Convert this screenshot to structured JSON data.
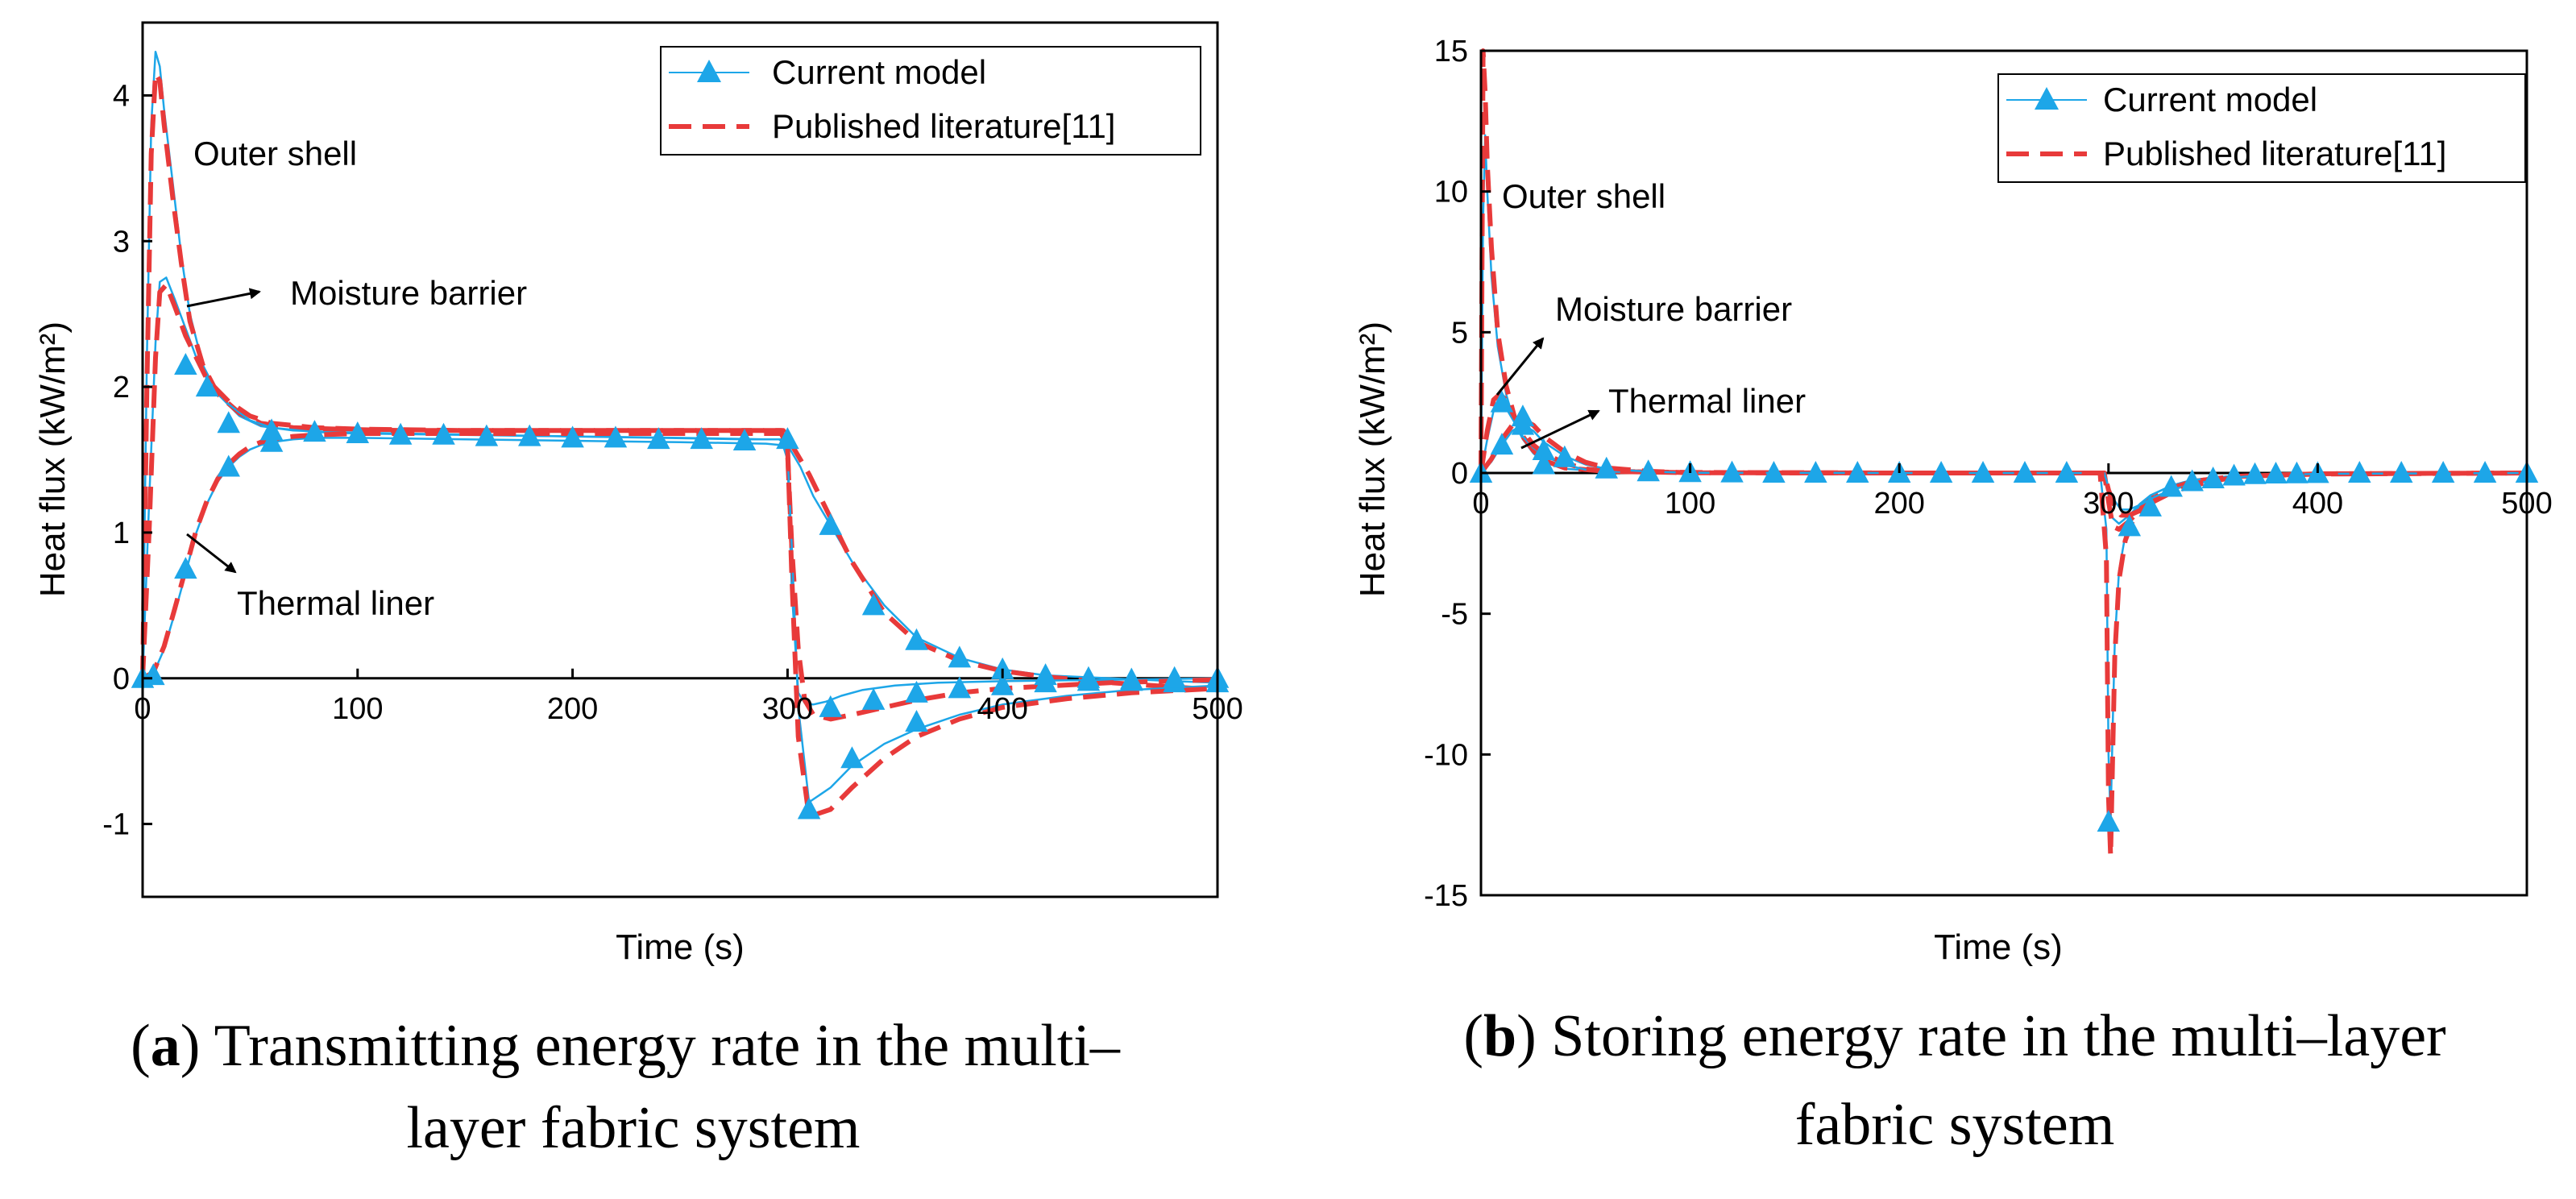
{
  "chart_data": [
    {
      "type": "line",
      "caption_letter": "a",
      "caption_line1": "Transmitting energy rate in the multi–",
      "caption_line2": "layer fabric system",
      "xlabel": "Time (s)",
      "ylabel": "Heat flux (kW/m²)",
      "xlim": [
        0,
        500
      ],
      "ylim": [
        -1.5,
        4.5
      ],
      "xticks": [
        0,
        100,
        200,
        300,
        400,
        500
      ],
      "yticks": [
        -1,
        0,
        1,
        2,
        3,
        4
      ],
      "legend": {
        "placement": "top-right",
        "entries": [
          "Current model",
          "Published literature[11]"
        ]
      },
      "series": [
        {
          "name": "Outer shell - Current model",
          "style": "model",
          "x": [
            0,
            2,
            4,
            6,
            8,
            10,
            14,
            18,
            22,
            28,
            35,
            45,
            55,
            70,
            90,
            120,
            160,
            200,
            240,
            280,
            296,
            300,
            306,
            312,
            320,
            330,
            345,
            360,
            380,
            400,
            420,
            450,
            480,
            500
          ],
          "y": [
            0,
            2.2,
            3.8,
            4.3,
            4.2,
            3.9,
            3.4,
            2.9,
            2.5,
            2.15,
            1.95,
            1.8,
            1.73,
            1.7,
            1.69,
            1.68,
            1.67,
            1.66,
            1.65,
            1.64,
            1.64,
            1.6,
            1.45,
            1.25,
            1.05,
            0.8,
            0.5,
            0.28,
            0.14,
            0.06,
            0.02,
            0.0,
            -0.02,
            -0.03
          ]
        },
        {
          "name": "Outer shell - Published literature",
          "style": "literature",
          "x": [
            0,
            2,
            4,
            6,
            8,
            10,
            14,
            18,
            22,
            28,
            35,
            45,
            55,
            70,
            90,
            120,
            160,
            200,
            240,
            280,
            298,
            302,
            310,
            320,
            330,
            345,
            360,
            380,
            400,
            420,
            450,
            480,
            500
          ],
          "y": [
            0,
            2.0,
            3.6,
            4.15,
            4.1,
            3.8,
            3.3,
            2.85,
            2.45,
            2.15,
            1.95,
            1.82,
            1.75,
            1.72,
            1.71,
            1.7,
            1.7,
            1.7,
            1.7,
            1.7,
            1.7,
            1.6,
            1.4,
            1.1,
            0.8,
            0.45,
            0.25,
            0.12,
            0.05,
            0.01,
            -0.03,
            -0.06,
            -0.08
          ]
        },
        {
          "name": "Moisture barrier - Current model",
          "style": "model",
          "x": [
            0,
            3,
            6,
            8,
            11,
            15,
            20,
            25,
            30,
            40,
            50,
            60,
            80,
            100,
            150,
            200,
            250,
            290,
            297,
            300,
            302,
            305,
            308,
            312,
            318,
            325,
            335,
            350,
            370,
            400,
            450,
            500
          ],
          "y": [
            0,
            1.2,
            2.3,
            2.72,
            2.75,
            2.6,
            2.4,
            2.2,
            2.05,
            1.88,
            1.77,
            1.72,
            1.69,
            1.68,
            1.67,
            1.66,
            1.65,
            1.64,
            1.64,
            1.5,
            0.6,
            -0.1,
            -0.17,
            -0.18,
            -0.16,
            -0.12,
            -0.08,
            -0.05,
            -0.03,
            -0.02,
            -0.01,
            0.0
          ]
        },
        {
          "name": "Moisture barrier - Published literature",
          "style": "literature",
          "x": [
            0,
            3,
            6,
            8,
            11,
            15,
            20,
            25,
            30,
            40,
            50,
            60,
            80,
            100,
            150,
            200,
            250,
            290,
            297,
            300,
            302,
            305,
            308,
            312,
            320,
            330,
            345,
            360,
            380,
            400,
            450,
            500
          ],
          "y": [
            0,
            1.0,
            2.2,
            2.65,
            2.7,
            2.55,
            2.35,
            2.2,
            2.05,
            1.9,
            1.8,
            1.75,
            1.72,
            1.71,
            1.7,
            1.7,
            1.7,
            1.7,
            1.7,
            1.55,
            0.9,
            0.2,
            -0.15,
            -0.25,
            -0.28,
            -0.25,
            -0.2,
            -0.15,
            -0.1,
            -0.07,
            -0.03,
            -0.01
          ]
        },
        {
          "name": "Thermal liner - Current model",
          "style": "model",
          "x": [
            0,
            5,
            10,
            15,
            20,
            25,
            30,
            35,
            40,
            45,
            50,
            55,
            60,
            70,
            80,
            100,
            150,
            200,
            250,
            290,
            297,
            300,
            302,
            305,
            310,
            320,
            330,
            345,
            360,
            380,
            400,
            430,
            460,
            500
          ],
          "y": [
            0,
            0.03,
            0.2,
            0.45,
            0.72,
            1.0,
            1.2,
            1.35,
            1.45,
            1.52,
            1.57,
            1.6,
            1.62,
            1.64,
            1.65,
            1.65,
            1.64,
            1.63,
            1.62,
            1.61,
            1.6,
            1.55,
            0.9,
            -0.2,
            -0.85,
            -0.75,
            -0.6,
            -0.45,
            -0.35,
            -0.25,
            -0.18,
            -0.12,
            -0.08,
            -0.05
          ]
        },
        {
          "name": "Thermal liner - Published literature",
          "style": "literature",
          "x": [
            0,
            5,
            10,
            15,
            20,
            25,
            30,
            35,
            40,
            45,
            50,
            55,
            60,
            70,
            80,
            100,
            150,
            200,
            250,
            290,
            297,
            300,
            302,
            305,
            310,
            320,
            330,
            345,
            360,
            380,
            400,
            430,
            460,
            500
          ],
          "y": [
            0,
            0.04,
            0.22,
            0.48,
            0.75,
            1.02,
            1.22,
            1.37,
            1.47,
            1.54,
            1.59,
            1.62,
            1.64,
            1.66,
            1.67,
            1.68,
            1.68,
            1.68,
            1.68,
            1.68,
            1.68,
            1.6,
            0.7,
            -0.4,
            -0.95,
            -0.9,
            -0.75,
            -0.55,
            -0.4,
            -0.28,
            -0.2,
            -0.14,
            -0.1,
            -0.07
          ]
        }
      ],
      "markers_current_model": {
        "x": [
          0,
          20,
          30,
          40,
          60,
          80,
          100,
          120,
          140,
          160,
          180,
          200,
          220,
          240,
          260,
          280,
          300,
          320,
          340,
          360,
          380,
          400,
          420,
          440,
          460,
          480,
          500,
          320,
          340,
          360,
          380,
          400,
          420,
          440,
          460,
          480,
          500,
          5,
          20,
          40,
          60,
          310,
          330,
          360
        ],
        "y": [
          0,
          2.15,
          2.0,
          1.75,
          1.7,
          1.69,
          1.68,
          1.67,
          1.67,
          1.66,
          1.66,
          1.65,
          1.65,
          1.64,
          1.64,
          1.63,
          1.64,
          1.05,
          0.5,
          0.26,
          0.14,
          0.06,
          0.02,
          0.0,
          -0.02,
          -0.03,
          -0.03,
          -0.2,
          -0.15,
          -0.1,
          -0.07,
          -0.05,
          -0.03,
          -0.02,
          -0.01,
          0.0,
          0.0,
          0.02,
          0.75,
          1.45,
          1.62,
          -0.9,
          -0.55,
          -0.3
        ]
      },
      "annotations": [
        {
          "text": "Outer shell"
        },
        {
          "text": "Moisture barrier"
        },
        {
          "text": "Thermal liner"
        }
      ],
      "colors": {
        "model": "#1da6e8",
        "literature": "#e83a3a"
      }
    },
    {
      "type": "line",
      "caption_letter": "b",
      "caption_line1": "Storing energy rate in the multi–layer",
      "caption_line2": "fabric system",
      "xlabel": "Time (s)",
      "ylabel": "Heat flux (kW/m²)",
      "xlim": [
        0,
        500
      ],
      "ylim": [
        -15,
        15
      ],
      "xticks": [
        0,
        100,
        200,
        300,
        400,
        500
      ],
      "yticks": [
        -15,
        -10,
        -5,
        0,
        5,
        10,
        15
      ],
      "legend": {
        "placement": "top-right",
        "entries": [
          "Current model",
          "Published literature[11]"
        ]
      },
      "series": [
        {
          "name": "Outer shell - Current model",
          "style": "model",
          "x": [
            0,
            1,
            2,
            3,
            5,
            8,
            12,
            16,
            20,
            25,
            30,
            40,
            60,
            100,
            200,
            296,
            299,
            300,
            301,
            302,
            303,
            305,
            308,
            312,
            320,
            330,
            340,
            360,
            400,
            500
          ],
          "y": [
            0,
            9,
            12,
            10,
            7,
            4.5,
            2.8,
            1.8,
            1.2,
            0.7,
            0.4,
            0.15,
            0.05,
            0.02,
            0.0,
            0.0,
            -2,
            -10,
            -12.4,
            -9,
            -6,
            -3.5,
            -2.2,
            -1.4,
            -0.8,
            -0.45,
            -0.25,
            -0.1,
            -0.03,
            0.0
          ]
        },
        {
          "name": "Outer shell - Published literature",
          "style": "literature",
          "x": [
            0,
            1,
            2,
            3,
            5,
            8,
            12,
            16,
            20,
            25,
            30,
            40,
            60,
            100,
            200,
            296,
            299,
            300,
            301,
            302,
            303,
            305,
            308,
            312,
            320,
            330,
            340,
            360,
            400,
            500
          ],
          "y": [
            0,
            15,
            13.5,
            11,
            8,
            5,
            3.1,
            2.0,
            1.3,
            0.8,
            0.45,
            0.18,
            0.06,
            0.02,
            0.0,
            0.0,
            -3,
            -11.5,
            -13.6,
            -10,
            -6.5,
            -3.8,
            -2.4,
            -1.6,
            -0.9,
            -0.5,
            -0.3,
            -0.12,
            -0.04,
            0.0
          ]
        },
        {
          "name": "Moisture barrier - Current model",
          "style": "model",
          "x": [
            0,
            3,
            6,
            9,
            12,
            16,
            20,
            25,
            30,
            40,
            50,
            60,
            100,
            200,
            298,
            300,
            302,
            305,
            310,
            315,
            320,
            330,
            340,
            360,
            400,
            500
          ],
          "y": [
            0,
            1.2,
            2.2,
            2.5,
            2.3,
            1.8,
            1.3,
            0.9,
            0.6,
            0.3,
            0.12,
            0.05,
            0.01,
            0.0,
            0.0,
            -0.8,
            -1.6,
            -1.8,
            -1.5,
            -1.1,
            -0.8,
            -0.45,
            -0.25,
            -0.1,
            -0.02,
            0.0
          ]
        },
        {
          "name": "Moisture barrier - Published literature",
          "style": "literature",
          "x": [
            0,
            3,
            6,
            9,
            12,
            16,
            20,
            25,
            30,
            40,
            50,
            60,
            100,
            200,
            298,
            300,
            302,
            305,
            310,
            315,
            320,
            330,
            340,
            360,
            400,
            500
          ],
          "y": [
            0,
            1.5,
            2.6,
            2.8,
            2.6,
            2.0,
            1.5,
            1.0,
            0.7,
            0.35,
            0.15,
            0.06,
            0.01,
            0.0,
            0.0,
            -1.0,
            -1.9,
            -2.0,
            -1.7,
            -1.3,
            -0.95,
            -0.55,
            -0.3,
            -0.12,
            -0.03,
            0.0
          ]
        },
        {
          "name": "Thermal liner - Current model",
          "style": "model",
          "x": [
            0,
            5,
            10,
            15,
            20,
            25,
            30,
            40,
            50,
            60,
            80,
            100,
            200,
            298,
            300,
            303,
            306,
            310,
            316,
            322,
            330,
            340,
            355,
            370,
            400,
            500
          ],
          "y": [
            0,
            0.4,
            1.0,
            1.5,
            1.7,
            1.5,
            1.1,
            0.6,
            0.3,
            0.15,
            0.05,
            0.01,
            0.0,
            0.0,
            -0.5,
            -1.0,
            -1.3,
            -1.3,
            -1.1,
            -0.85,
            -0.6,
            -0.4,
            -0.2,
            -0.1,
            -0.03,
            0.0
          ]
        },
        {
          "name": "Thermal liner - Published literature",
          "style": "literature",
          "x": [
            0,
            5,
            10,
            15,
            20,
            25,
            30,
            40,
            50,
            60,
            80,
            100,
            200,
            298,
            300,
            303,
            306,
            310,
            316,
            322,
            330,
            340,
            355,
            370,
            400,
            500
          ],
          "y": [
            0,
            0.5,
            1.2,
            1.7,
            1.9,
            1.7,
            1.3,
            0.75,
            0.38,
            0.18,
            0.06,
            0.01,
            0.0,
            0.0,
            -0.6,
            -1.2,
            -1.5,
            -1.5,
            -1.3,
            -1.0,
            -0.7,
            -0.45,
            -0.22,
            -0.1,
            -0.03,
            0.0
          ]
        }
      ],
      "markers_current_model": {
        "x": [
          0,
          10,
          20,
          30,
          40,
          60,
          80,
          100,
          120,
          140,
          160,
          180,
          200,
          220,
          240,
          260,
          280,
          300,
          310,
          320,
          330,
          340,
          350,
          360,
          370,
          380,
          390,
          400,
          420,
          440,
          460,
          480,
          500,
          10,
          20,
          30
        ],
        "y": [
          0,
          2.5,
          2.0,
          0.8,
          0.55,
          0.15,
          0.05,
          0.02,
          0.01,
          0.0,
          0.0,
          0.0,
          0.0,
          0.0,
          0.0,
          0.0,
          0.0,
          -12.4,
          -1.9,
          -1.2,
          -0.5,
          -0.3,
          -0.2,
          -0.1,
          -0.05,
          -0.03,
          -0.02,
          -0.01,
          0.0,
          0.0,
          0.0,
          0.0,
          0.0,
          1.0,
          1.7,
          0.3
        ]
      },
      "annotations": [
        {
          "text": "Outer shell"
        },
        {
          "text": "Moisture barrier"
        },
        {
          "text": "Thermal liner"
        }
      ],
      "colors": {
        "model": "#1da6e8",
        "literature": "#e83a3a"
      }
    }
  ]
}
